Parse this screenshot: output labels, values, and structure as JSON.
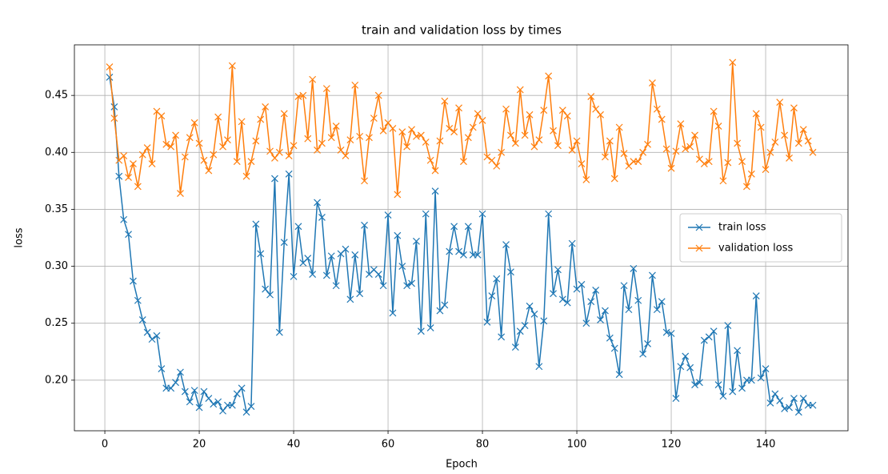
{
  "chart_data": {
    "type": "line",
    "title": "train and validation loss by times",
    "x_label": "Epoch",
    "y_label": "loss",
    "x": [
      1,
      2,
      3,
      4,
      5,
      6,
      7,
      8,
      9,
      10,
      11,
      12,
      13,
      14,
      15,
      16,
      17,
      18,
      19,
      20,
      21,
      22,
      23,
      24,
      25,
      26,
      27,
      28,
      29,
      30,
      31,
      32,
      33,
      34,
      35,
      36,
      37,
      38,
      39,
      40,
      41,
      42,
      43,
      44,
      45,
      46,
      47,
      48,
      49,
      50,
      51,
      52,
      53,
      54,
      55,
      56,
      57,
      58,
      59,
      60,
      61,
      62,
      63,
      64,
      65,
      66,
      67,
      68,
      69,
      70,
      71,
      72,
      73,
      74,
      75,
      76,
      77,
      78,
      79,
      80,
      81,
      82,
      83,
      84,
      85,
      86,
      87,
      88,
      89,
      90,
      91,
      92,
      93,
      94,
      95,
      96,
      97,
      98,
      99,
      100,
      101,
      102,
      103,
      104,
      105,
      106,
      107,
      108,
      109,
      110,
      111,
      112,
      113,
      114,
      115,
      116,
      117,
      118,
      119,
      120,
      121,
      122,
      123,
      124,
      125,
      126,
      127,
      128,
      129,
      130,
      131,
      132,
      133,
      134,
      135,
      136,
      137,
      138,
      139,
      140,
      141,
      142,
      143,
      144,
      145,
      146,
      147,
      148,
      149,
      150
    ],
    "series": [
      {
        "name": "train loss",
        "color": "#1f77b4",
        "marker": "x",
        "values": [
          0.466,
          0.44,
          0.379,
          0.341,
          0.328,
          0.287,
          0.27,
          0.253,
          0.242,
          0.236,
          0.239,
          0.21,
          0.193,
          0.193,
          0.198,
          0.207,
          0.19,
          0.181,
          0.191,
          0.176,
          0.19,
          0.184,
          0.179,
          0.181,
          0.173,
          0.178,
          0.178,
          0.188,
          0.193,
          0.172,
          0.177,
          0.337,
          0.311,
          0.28,
          0.275,
          0.377,
          0.242,
          0.321,
          0.381,
          0.291,
          0.335,
          0.303,
          0.307,
          0.293,
          0.356,
          0.343,
          0.292,
          0.309,
          0.283,
          0.311,
          0.315,
          0.271,
          0.31,
          0.276,
          0.336,
          0.293,
          0.297,
          0.293,
          0.283,
          0.345,
          0.259,
          0.327,
          0.3,
          0.283,
          0.285,
          0.322,
          0.243,
          0.346,
          0.246,
          0.366,
          0.261,
          0.266,
          0.313,
          0.335,
          0.313,
          0.31,
          0.335,
          0.31,
          0.31,
          0.346,
          0.251,
          0.274,
          0.289,
          0.238,
          0.319,
          0.295,
          0.229,
          0.243,
          0.248,
          0.265,
          0.258,
          0.212,
          0.252,
          0.346,
          0.276,
          0.297,
          0.271,
          0.268,
          0.32,
          0.28,
          0.284,
          0.25,
          0.269,
          0.279,
          0.253,
          0.261,
          0.237,
          0.228,
          0.205,
          0.283,
          0.262,
          0.298,
          0.27,
          0.223,
          0.232,
          0.292,
          0.262,
          0.269,
          0.242,
          0.241,
          0.184,
          0.212,
          0.221,
          0.211,
          0.196,
          0.198,
          0.235,
          0.238,
          0.243,
          0.196,
          0.186,
          0.248,
          0.19,
          0.226,
          0.193,
          0.2,
          0.2,
          0.274,
          0.202,
          0.21,
          0.18,
          0.188,
          0.182,
          0.175,
          0.176,
          0.184,
          0.172,
          0.184,
          0.178,
          0.178
        ]
      },
      {
        "name": "validation loss",
        "color": "#ff7f0e",
        "marker": "x",
        "values": [
          0.475,
          0.43,
          0.393,
          0.397,
          0.378,
          0.39,
          0.37,
          0.398,
          0.404,
          0.39,
          0.436,
          0.432,
          0.407,
          0.405,
          0.415,
          0.364,
          0.396,
          0.413,
          0.426,
          0.408,
          0.393,
          0.384,
          0.398,
          0.431,
          0.405,
          0.411,
          0.476,
          0.392,
          0.427,
          0.379,
          0.392,
          0.41,
          0.429,
          0.44,
          0.401,
          0.395,
          0.4,
          0.434,
          0.397,
          0.406,
          0.449,
          0.45,
          0.412,
          0.464,
          0.402,
          0.408,
          0.456,
          0.413,
          0.423,
          0.402,
          0.397,
          0.411,
          0.459,
          0.414,
          0.375,
          0.413,
          0.43,
          0.45,
          0.419,
          0.426,
          0.421,
          0.363,
          0.418,
          0.405,
          0.42,
          0.414,
          0.415,
          0.409,
          0.393,
          0.384,
          0.41,
          0.445,
          0.421,
          0.418,
          0.439,
          0.392,
          0.413,
          0.422,
          0.434,
          0.428,
          0.396,
          0.393,
          0.388,
          0.4,
          0.438,
          0.415,
          0.408,
          0.455,
          0.415,
          0.433,
          0.405,
          0.411,
          0.437,
          0.467,
          0.419,
          0.406,
          0.437,
          0.432,
          0.402,
          0.41,
          0.39,
          0.376,
          0.449,
          0.438,
          0.433,
          0.396,
          0.41,
          0.377,
          0.422,
          0.399,
          0.388,
          0.392,
          0.392,
          0.4,
          0.407,
          0.461,
          0.438,
          0.429,
          0.403,
          0.386,
          0.401,
          0.425,
          0.403,
          0.405,
          0.415,
          0.394,
          0.39,
          0.392,
          0.436,
          0.423,
          0.375,
          0.391,
          0.479,
          0.408,
          0.392,
          0.37,
          0.381,
          0.434,
          0.422,
          0.385,
          0.4,
          0.409,
          0.444,
          0.415,
          0.395,
          0.439,
          0.408,
          0.42,
          0.41,
          0.4
        ]
      }
    ],
    "xlim": [
      -6.45,
      157.45
    ],
    "ylim": [
      0.1556,
      0.4944
    ],
    "xticks": [
      0,
      20,
      40,
      60,
      80,
      100,
      120,
      140
    ],
    "yticks": [
      {
        "value": 0.2,
        "label": "0.20"
      },
      0.25,
      {
        "value": 0.3,
        "label": "0.30"
      },
      0.35,
      {
        "value": 0.4,
        "label": "0.40"
      },
      0.45
    ],
    "grid": true,
    "legend": "center right"
  }
}
